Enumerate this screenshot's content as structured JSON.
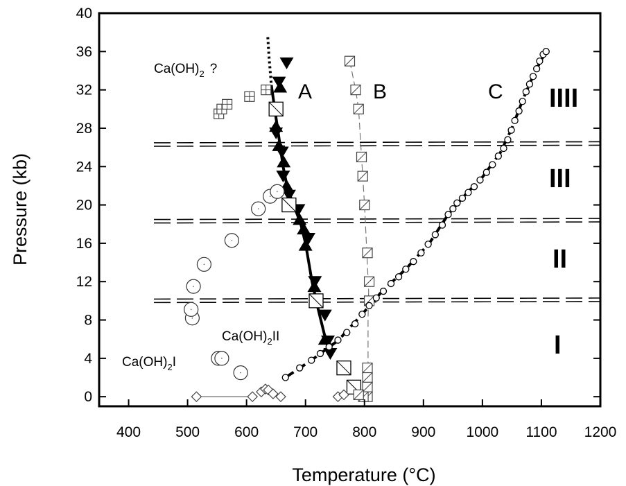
{
  "chart_data": {
    "type": "scatter",
    "xlabel": "Temperature (°C)",
    "ylabel": "Pressure (kb)",
    "xlim": [
      350,
      1200
    ],
    "ylim": [
      -1,
      40
    ],
    "xticks": [
      "400",
      "500",
      "600",
      "700",
      "800",
      "900",
      "1000",
      "1100",
      "1200"
    ],
    "yticks": [
      "0",
      "4",
      "8",
      "12",
      "16",
      "20",
      "24",
      "28",
      "32",
      "36",
      "40"
    ],
    "grid": false,
    "dashed_boundaries_kb": [
      10,
      18.3,
      26.3
    ],
    "annotations": {
      "caoh2_q": "Ca(OH)",
      "caoh2_q_sub": "2",
      "caoh2_q_suffix": "?",
      "caoh2_i": "Ca(OH)",
      "caoh2_i_sub": "2",
      "caoh2_i_suffix": "I",
      "caoh2_ii": "Ca(OH)",
      "caoh2_ii_sub": "2",
      "caoh2_ii_suffix": "II",
      "label_a": "A",
      "label_b": "B",
      "label_c": "C",
      "region_i": "I",
      "region_ii": "II",
      "region_iii": "III",
      "region_iiii": "IIII"
    },
    "series": [
      {
        "marker": "filled-triangle-down",
        "values": [
          [
            668,
            34.8
          ],
          [
            655,
            32.8
          ],
          [
            650,
            27.5
          ],
          [
            660,
            25.5
          ],
          [
            662,
            23.0
          ],
          [
            672,
            21.0
          ],
          [
            688,
            19.5
          ],
          [
            705,
            16.5
          ],
          [
            716,
            12.0
          ],
          [
            733,
            8.5
          ],
          [
            738,
            5.8
          ],
          [
            742,
            4.5
          ]
        ]
      },
      {
        "marker": "filled-triangle-up",
        "values": [
          [
            657,
            32.3
          ],
          [
            650,
            28.2
          ],
          [
            655,
            26.2
          ],
          [
            663,
            24.5
          ],
          [
            668,
            22.0
          ],
          [
            690,
            18.5
          ],
          [
            697,
            17.5
          ],
          [
            700,
            15.8
          ],
          [
            715,
            11.5
          ],
          [
            733,
            6.0
          ]
        ]
      },
      {
        "marker": "square-diagonal-large",
        "values": [
          [
            650,
            30.0
          ],
          [
            672,
            20.0
          ],
          [
            718,
            10.0
          ],
          [
            765,
            3.0
          ],
          [
            782,
            1.0
          ]
        ]
      },
      {
        "marker": "square-diagonal-small",
        "values": [
          [
            775,
            35.0
          ],
          [
            785,
            32.0
          ],
          [
            790,
            30.0
          ],
          [
            795,
            25.0
          ],
          [
            797,
            23.0
          ],
          [
            800,
            20.0
          ],
          [
            805,
            15.0
          ],
          [
            808,
            12.0
          ],
          [
            808,
            10.0
          ],
          [
            805,
            3.0
          ],
          [
            805,
            2.0
          ],
          [
            805,
            1.0
          ],
          [
            805,
            0.0
          ],
          [
            798,
            0.0
          ],
          [
            790,
            0.2
          ]
        ]
      },
      {
        "marker": "square-cross",
        "values": [
          [
            553,
            29.5
          ],
          [
            558,
            30.0
          ],
          [
            567,
            30.5
          ],
          [
            605,
            31.3
          ],
          [
            633,
            32.0
          ]
        ]
      },
      {
        "marker": "open-circle-large",
        "values": [
          [
            508,
            8.2
          ],
          [
            506,
            9.1
          ],
          [
            510,
            11.5
          ],
          [
            528,
            13.8
          ],
          [
            575,
            16.3
          ],
          [
            620,
            19.6
          ],
          [
            640,
            20.9
          ],
          [
            652,
            21.4
          ],
          [
            552,
            4.0
          ],
          [
            558,
            4.0
          ],
          [
            590,
            2.5
          ]
        ]
      },
      {
        "marker": "open-circle-small",
        "values": [
          [
            666,
            2.0
          ],
          [
            690,
            3.0
          ],
          [
            710,
            3.8
          ],
          [
            725,
            4.5
          ],
          [
            740,
            5.2
          ],
          [
            755,
            5.9
          ],
          [
            770,
            6.7
          ],
          [
            784,
            7.6
          ],
          [
            796,
            8.6
          ],
          [
            808,
            9.5
          ],
          [
            820,
            10.3
          ],
          [
            832,
            11.0
          ],
          [
            845,
            11.8
          ],
          [
            858,
            12.5
          ],
          [
            870,
            13.3
          ],
          [
            883,
            14.1
          ],
          [
            896,
            15.0
          ],
          [
            908,
            15.9
          ],
          [
            920,
            16.9
          ],
          [
            932,
            17.9
          ],
          [
            942,
            19.0
          ],
          [
            950,
            19.6
          ],
          [
            957,
            20.2
          ],
          [
            966,
            20.7
          ],
          [
            976,
            21.3
          ],
          [
            986,
            21.9
          ],
          [
            996,
            22.6
          ],
          [
            1007,
            23.4
          ],
          [
            1017,
            24.2
          ],
          [
            1027,
            25.1
          ],
          [
            1036,
            25.9
          ],
          [
            1043,
            26.8
          ],
          [
            1049,
            27.8
          ],
          [
            1055,
            28.8
          ],
          [
            1062,
            29.8
          ],
          [
            1068,
            30.8
          ],
          [
            1074,
            31.8
          ],
          [
            1080,
            32.6
          ],
          [
            1086,
            33.4
          ],
          [
            1092,
            34.2
          ],
          [
            1097,
            35.0
          ],
          [
            1103,
            35.7
          ],
          [
            1108,
            36.0
          ]
        ]
      },
      {
        "marker": "open-diamond",
        "values": [
          [
            515,
            0.0
          ],
          [
            610,
            0.0
          ],
          [
            625,
            0.5
          ],
          [
            632,
            0.8
          ],
          [
            637,
            0.7
          ],
          [
            645,
            0.3
          ],
          [
            658,
            0.0
          ],
          [
            755,
            0.0
          ],
          [
            765,
            0.2
          ]
        ]
      }
    ],
    "curves": [
      {
        "style": "dotted",
        "values": [
          [
            636,
            37.5
          ],
          [
            638,
            35.5
          ],
          [
            640,
            34.0
          ],
          [
            642,
            32.5
          ]
        ]
      },
      {
        "style": "thick-solid",
        "values": [
          [
            642,
            32.5
          ],
          [
            649,
            29.5
          ],
          [
            655,
            27.0
          ],
          [
            662,
            24.0
          ],
          [
            670,
            21.5
          ],
          [
            680,
            20.0
          ],
          [
            692,
            18.0
          ],
          [
            700,
            16.0
          ],
          [
            711,
            12.0
          ],
          [
            722,
            9.0
          ],
          [
            734,
            6.0
          ],
          [
            742,
            4.3
          ]
        ]
      },
      {
        "style": "thin-dashed",
        "values": [
          [
            775,
            35.0
          ],
          [
            785,
            32.0
          ],
          [
            790,
            30.0
          ],
          [
            795,
            25.0
          ],
          [
            798,
            22.0
          ],
          [
            800,
            20.0
          ],
          [
            804,
            15.0
          ],
          [
            807,
            11.0
          ],
          [
            806,
            8.0
          ],
          [
            806,
            0.0
          ]
        ]
      },
      {
        "style": "thick-dashed",
        "values": [
          [
            666,
            2.0
          ],
          [
            710,
            3.8
          ],
          [
            756,
            5.9
          ],
          [
            796,
            8.6
          ],
          [
            830,
            11.0
          ],
          [
            870,
            13.3
          ],
          [
            910,
            16.0
          ],
          [
            942,
            19.0
          ],
          [
            970,
            21.0
          ],
          [
            1000,
            22.9
          ],
          [
            1030,
            25.4
          ],
          [
            1050,
            28.0
          ],
          [
            1070,
            31.2
          ],
          [
            1090,
            34.0
          ],
          [
            1108,
            36.0
          ]
        ]
      },
      {
        "style": "thin-solid",
        "values": [
          [
            515,
            0.0
          ],
          [
            605,
            0.0
          ]
        ]
      }
    ]
  }
}
